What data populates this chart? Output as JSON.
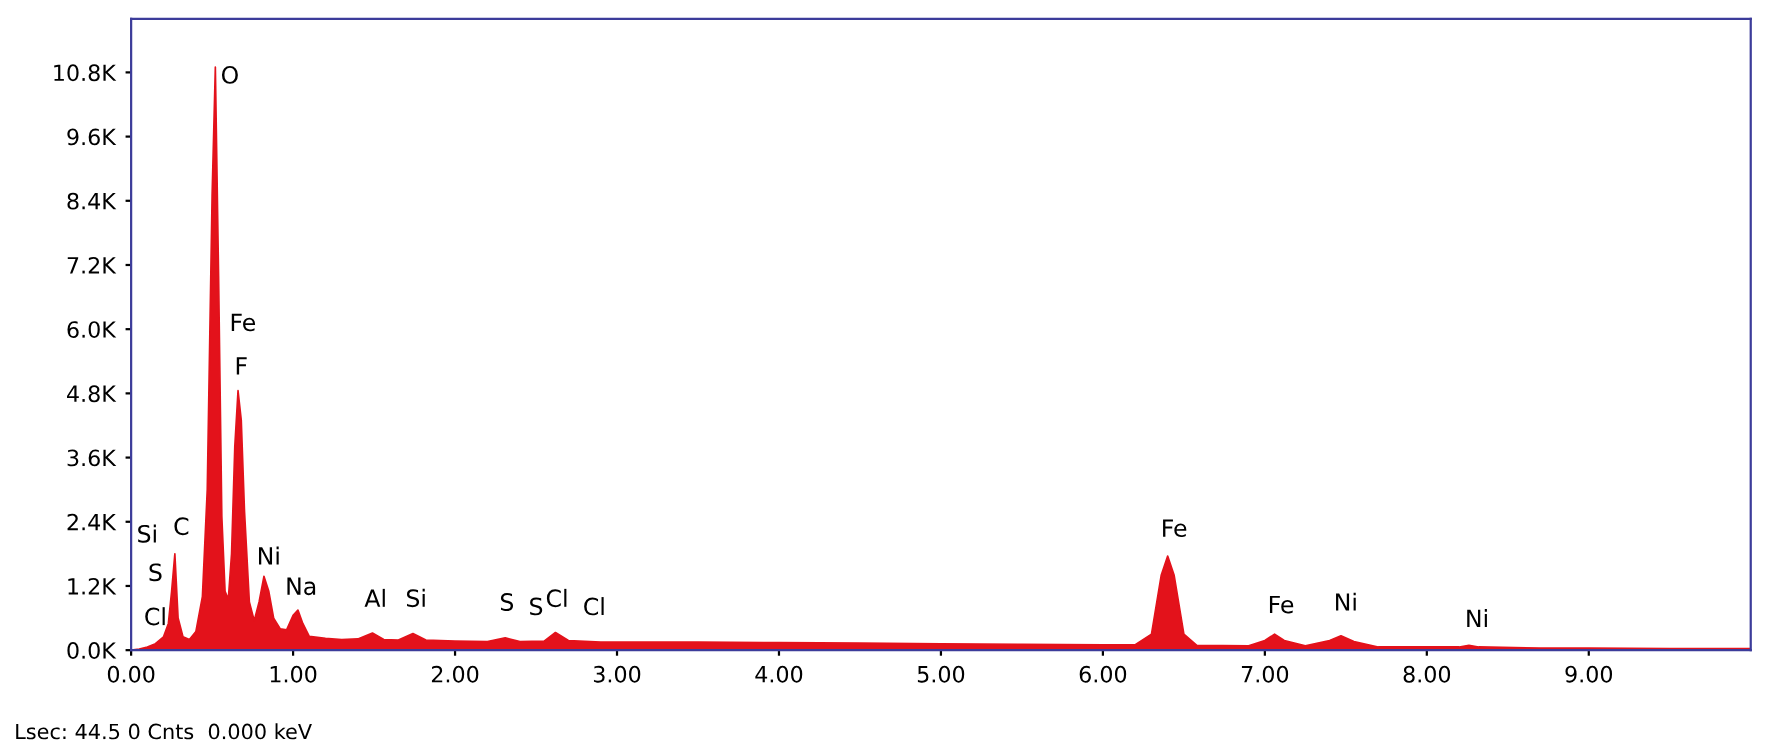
{
  "chart_data": {
    "type": "area",
    "x": [
      0.0,
      0.05,
      0.1,
      0.15,
      0.2,
      0.23,
      0.25,
      0.27,
      0.29,
      0.32,
      0.36,
      0.4,
      0.44,
      0.47,
      0.5,
      0.52,
      0.54,
      0.56,
      0.58,
      0.6,
      0.62,
      0.64,
      0.66,
      0.68,
      0.7,
      0.73,
      0.76,
      0.79,
      0.82,
      0.85,
      0.88,
      0.92,
      0.96,
      1.0,
      1.03,
      1.06,
      1.1,
      1.2,
      1.3,
      1.4,
      1.49,
      1.56,
      1.65,
      1.74,
      1.82,
      2.0,
      2.2,
      2.31,
      2.4,
      2.55,
      2.62,
      2.7,
      2.9,
      3.2,
      3.5,
      4.0,
      4.5,
      5.0,
      5.5,
      6.0,
      6.2,
      6.3,
      6.36,
      6.4,
      6.44,
      6.5,
      6.58,
      6.9,
      7.0,
      7.06,
      7.12,
      7.25,
      7.4,
      7.47,
      7.55,
      7.7,
      8.0,
      8.2,
      8.26,
      8.32,
      8.7,
      9.0,
      9.5,
      10.0
    ],
    "values": [
      0,
      20,
      60,
      120,
      250,
      500,
      1100,
      1800,
      600,
      250,
      200,
      350,
      1000,
      3000,
      8500,
      10900,
      7000,
      2500,
      1100,
      950,
      1800,
      3800,
      4850,
      4300,
      2600,
      900,
      550,
      900,
      1380,
      1100,
      600,
      400,
      380,
      650,
      750,
      500,
      260,
      220,
      200,
      210,
      320,
      200,
      190,
      310,
      190,
      170,
      160,
      230,
      160,
      170,
      330,
      180,
      150,
      150,
      150,
      140,
      130,
      120,
      110,
      100,
      100,
      300,
      1400,
      1760,
      1400,
      300,
      90,
      80,
      180,
      300,
      180,
      80,
      180,
      270,
      160,
      60,
      60,
      60,
      90,
      60,
      40,
      40,
      30,
      30
    ],
    "color": "#e3121b",
    "xlim": [
      0,
      10
    ],
    "ylim": [
      0,
      11800
    ],
    "xticks": [
      {
        "value": 0,
        "label": "0.00"
      },
      {
        "value": 1,
        "label": "1.00"
      },
      {
        "value": 2,
        "label": "2.00"
      },
      {
        "value": 3,
        "label": "3.00"
      },
      {
        "value": 4,
        "label": "4.00"
      },
      {
        "value": 5,
        "label": "5.00"
      },
      {
        "value": 6,
        "label": "6.00"
      },
      {
        "value": 7,
        "label": "7.00"
      },
      {
        "value": 8,
        "label": "8.00"
      },
      {
        "value": 9,
        "label": "9.00"
      }
    ],
    "yticks": [
      {
        "value": 0,
        "label": "0.0K"
      },
      {
        "value": 1200,
        "label": "1.2K"
      },
      {
        "value": 2400,
        "label": "2.4K"
      },
      {
        "value": 3600,
        "label": "3.6K"
      },
      {
        "value": 4800,
        "label": "4.8K"
      },
      {
        "value": 6000,
        "label": "6.0K"
      },
      {
        "value": 7200,
        "label": "7.2K"
      },
      {
        "value": 8400,
        "label": "8.4K"
      },
      {
        "value": 9600,
        "label": "9.6K"
      },
      {
        "value": 10800,
        "label": "10.8K"
      }
    ],
    "grid": false,
    "legend": false,
    "annotations": [
      "Si",
      "S",
      "Cl",
      "C",
      "O",
      "Fe",
      "F",
      "Ni",
      "Na",
      "Al",
      "Si",
      "S",
      "S",
      "Cl",
      "Cl",
      "Fe",
      "Fe",
      "Ni",
      "Ni",
      "Lsec: 44.5 0 Cnts  0.000 keV"
    ]
  }
}
